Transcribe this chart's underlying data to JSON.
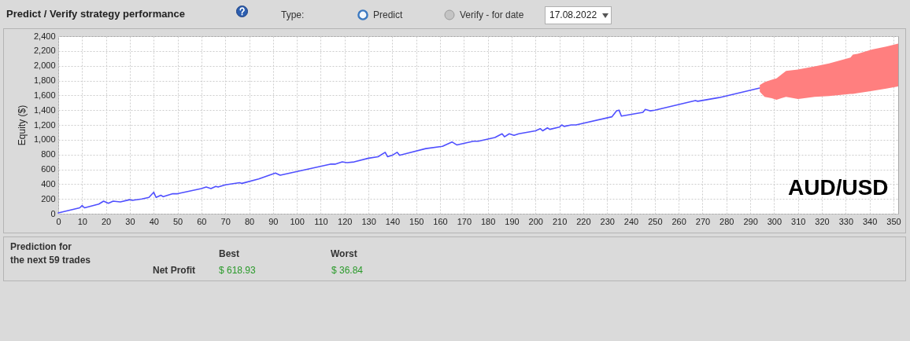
{
  "chart_data": {
    "type": "line",
    "title": "Predict / Verify strategy performance",
    "ylabel": "Equity ($)",
    "xlim": [
      0,
      352
    ],
    "xticks": [
      0,
      10,
      20,
      30,
      40,
      50,
      60,
      70,
      80,
      90,
      100,
      110,
      120,
      130,
      140,
      150,
      160,
      170,
      180,
      190,
      200,
      210,
      220,
      230,
      240,
      250,
      260,
      270,
      280,
      290,
      300,
      310,
      320,
      330,
      340,
      350
    ],
    "ylim": [
      0,
      2400
    ],
    "yticks": [
      0,
      200,
      400,
      600,
      800,
      {
        "value": 1000,
        "label": "1,000"
      },
      {
        "value": 1200,
        "label": "1,200"
      },
      {
        "value": 1400,
        "label": "1,400"
      },
      {
        "value": 1600,
        "label": "1,600"
      },
      {
        "value": 1800,
        "label": "1,800"
      },
      {
        "value": 2000,
        "label": "2,000"
      },
      {
        "value": 2200,
        "label": "2,200"
      },
      {
        "value": 2400,
        "label": "2,400"
      }
    ],
    "grid": true,
    "series": [
      {
        "color": "#4f4fff",
        "x": [
          0,
          9,
          10,
          11,
          17,
          19,
          21,
          23,
          26,
          30,
          31,
          35,
          38,
          40,
          41,
          43,
          44,
          48,
          50,
          60,
          62,
          64,
          66,
          67,
          70,
          76,
          77,
          84,
          91,
          93,
          114,
          116,
          119,
          121,
          124,
          130,
          134,
          137,
          138,
          140,
          142,
          143,
          154,
          161,
          165,
          167,
          174,
          176,
          183,
          186,
          187,
          189,
          191,
          193,
          200,
          202,
          203,
          205,
          206,
          210,
          211,
          212,
          215,
          217,
          232,
          234,
          235,
          236,
          245,
          246,
          248,
          250,
          267,
          268,
          277,
          294
        ],
        "values": [
          10,
          80,
          110,
          80,
          130,
          170,
          140,
          170,
          160,
          190,
          180,
          200,
          220,
          290,
          220,
          250,
          230,
          270,
          270,
          340,
          360,
          340,
          370,
          360,
          390,
          420,
          410,
          470,
          550,
          520,
          670,
          670,
          700,
          690,
          700,
          750,
          770,
          830,
          770,
          790,
          830,
          790,
          880,
          910,
          970,
          930,
          980,
          980,
          1030,
          1080,
          1040,
          1080,
          1060,
          1080,
          1120,
          1150,
          1120,
          1160,
          1140,
          1170,
          1200,
          1180,
          1200,
          1200,
          1310,
          1390,
          1400,
          1320,
          1370,
          1410,
          1390,
          1400,
          1530,
          1520,
          1570,
          1700
        ]
      },
      {
        "color": "#ff7f7f",
        "x": [
          294,
          296,
          299,
          301,
          303,
          305,
          310,
          317,
          323,
          332,
          333,
          335,
          341,
          347,
          352
        ],
        "values": [
          null,
          null,
          null,
          null,
          null,
          null,
          null,
          null,
          null,
          null,
          null,
          null,
          null,
          null,
          null
        ],
        "lower": [
          1650,
          1580,
          1560,
          1540,
          1560,
          1580,
          1550,
          1580,
          1590,
          1620,
          1620,
          1630,
          1660,
          1690,
          1720
        ],
        "upper": [
          1740,
          1780,
          1810,
          1830,
          1880,
          1930,
          1950,
          1990,
          2030,
          2110,
          2150,
          2160,
          2220,
          2260,
          2300
        ]
      }
    ],
    "annotations": [
      "Type:",
      "Predict",
      "Verify - for date",
      "17.08.2022",
      "AUD/USD",
      "Prediction for the next 59 trades",
      "Best",
      "Worst",
      "Net Profit",
      "$ 618.93",
      "$ 36.84"
    ]
  }
}
